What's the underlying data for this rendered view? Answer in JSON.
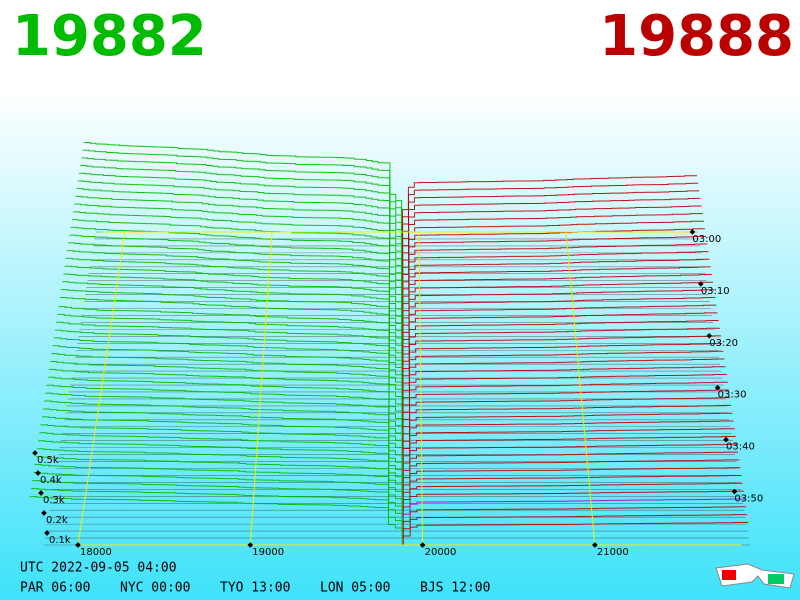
{
  "chart_data": {
    "type": "depth3d",
    "bid": 19882,
    "ask": 19888,
    "bid_color": "#00bb00",
    "ask_color": "#bb0000",
    "xticks": [
      18000,
      19000,
      20000,
      21000
    ],
    "depth_ticks": [
      {
        "value": 100,
        "label": "0.1k"
      },
      {
        "value": 200,
        "label": "0.2k"
      },
      {
        "value": 300,
        "label": "0.3k"
      },
      {
        "value": 400,
        "label": "0.4k"
      },
      {
        "value": 500,
        "label": "0.5k"
      }
    ],
    "time_ticks": [
      "03:00",
      "03:10",
      "03:20",
      "03:30",
      "03:40",
      "03:50"
    ],
    "clock_utc": "UTC 2022-09-05 04:00",
    "clocks": [
      "PAR 06:00",
      "NYC 00:00",
      "TYO 13:00",
      "LON 05:00",
      "BJS 12:00"
    ]
  }
}
